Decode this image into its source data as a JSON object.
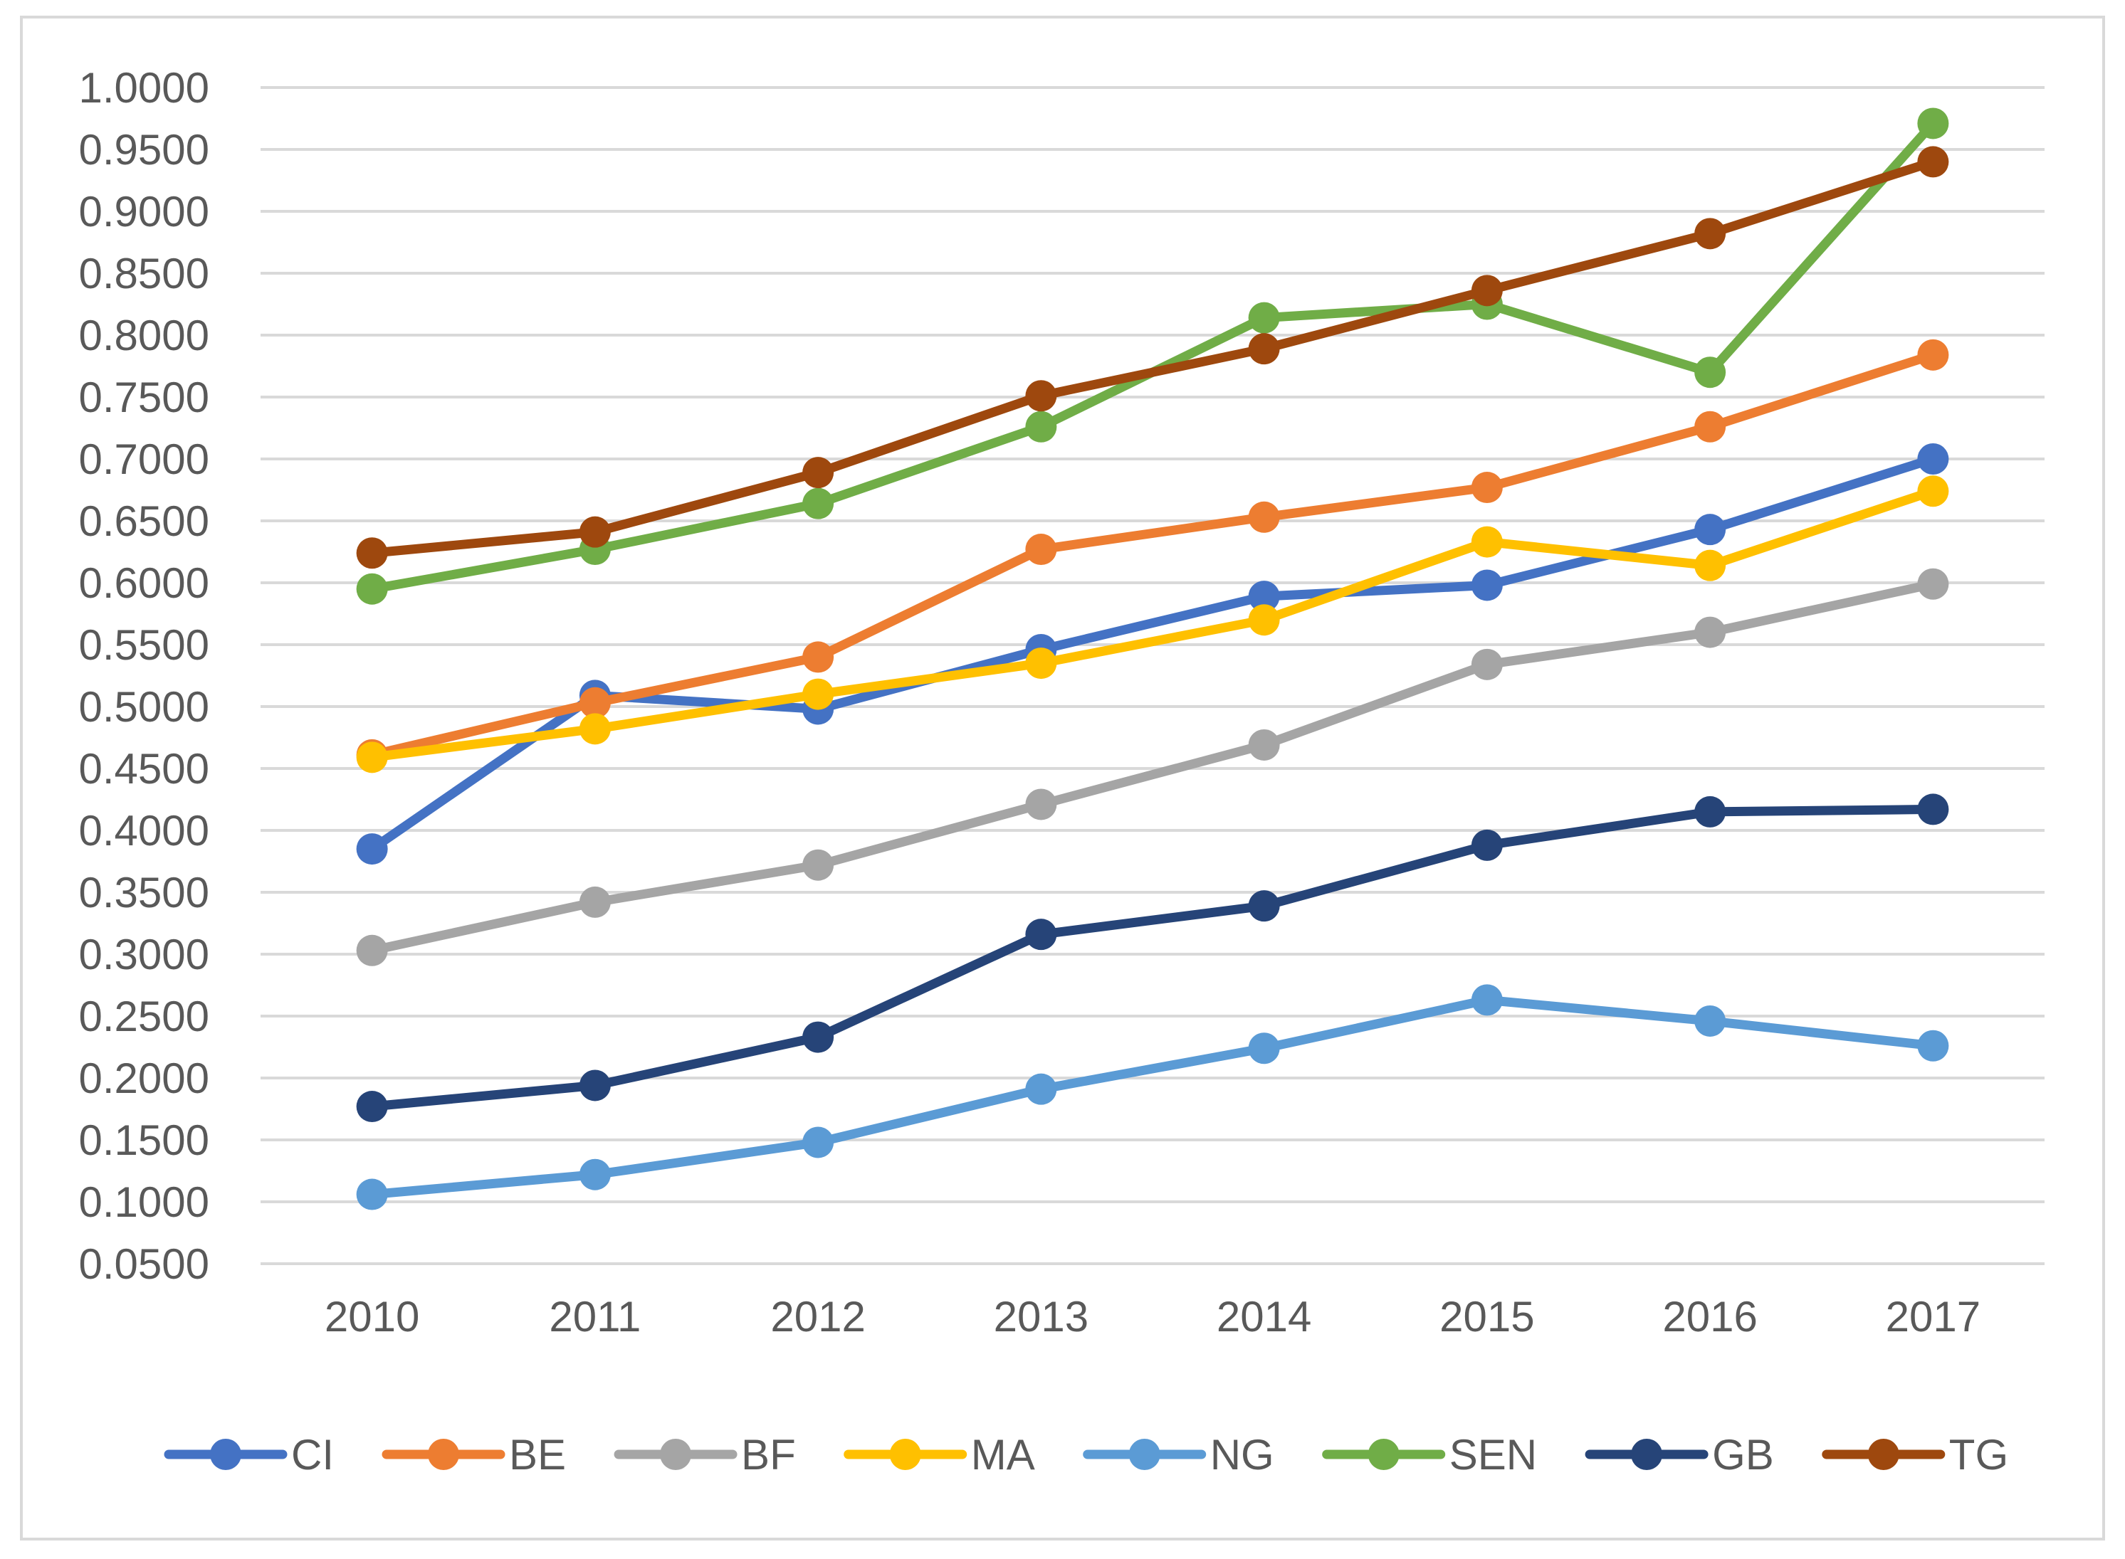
{
  "chart_data": {
    "type": "line",
    "title": "",
    "xlabel": "",
    "ylabel": "",
    "categories": [
      "2010",
      "2011",
      "2012",
      "2013",
      "2014",
      "2015",
      "2016",
      "2017"
    ],
    "ylim": [
      0.05,
      1.0
    ],
    "ytick_values": [
      0.05,
      0.1,
      0.15,
      0.2,
      0.25,
      0.3,
      0.35,
      0.4,
      0.45,
      0.5,
      0.55,
      0.6,
      0.65,
      0.7,
      0.75,
      0.8,
      0.85,
      0.9,
      0.95,
      1.0
    ],
    "ytick_labels": [
      "0.0500",
      "0.1000",
      "0.1500",
      "0.2000",
      "0.2500",
      "0.3000",
      "0.3500",
      "0.4000",
      "0.4500",
      "0.5000",
      "0.5500",
      "0.6000",
      "0.6500",
      "0.7000",
      "0.7500",
      "0.8000",
      "0.8500",
      "0.9000",
      "0.9500",
      "1.0000"
    ],
    "grid": true,
    "legend_position": "bottom",
    "series": [
      {
        "name": "CI",
        "color": "#4472c4",
        "values": [
          0.385,
          0.509,
          0.498,
          0.546,
          0.589,
          0.598,
          0.643,
          0.7
        ]
      },
      {
        "name": "BE",
        "color": "#ed7d31",
        "values": [
          0.461,
          0.503,
          0.54,
          0.627,
          0.653,
          0.677,
          0.726,
          0.784
        ]
      },
      {
        "name": "BF",
        "color": "#a5a5a5",
        "values": [
          0.303,
          0.342,
          0.372,
          0.421,
          0.469,
          0.534,
          0.56,
          0.599
        ]
      },
      {
        "name": "MA",
        "color": "#ffc000",
        "values": [
          0.459,
          0.482,
          0.51,
          0.535,
          0.57,
          0.633,
          0.614,
          0.674
        ]
      },
      {
        "name": "NG",
        "color": "#5b9bd5",
        "values": [
          0.106,
          0.122,
          0.148,
          0.191,
          0.224,
          0.263,
          0.246,
          0.226
        ]
      },
      {
        "name": "SEN",
        "color": "#70ad47",
        "values": [
          0.595,
          0.627,
          0.664,
          0.726,
          0.814,
          0.825,
          0.77,
          0.971
        ]
      },
      {
        "name": "GB",
        "color": "#264478",
        "values": [
          0.177,
          0.194,
          0.233,
          0.316,
          0.339,
          0.388,
          0.415,
          0.417
        ]
      },
      {
        "name": "TG",
        "color": "#9e480e",
        "values": [
          0.624,
          0.641,
          0.689,
          0.751,
          0.789,
          0.836,
          0.882,
          0.94
        ]
      }
    ]
  }
}
